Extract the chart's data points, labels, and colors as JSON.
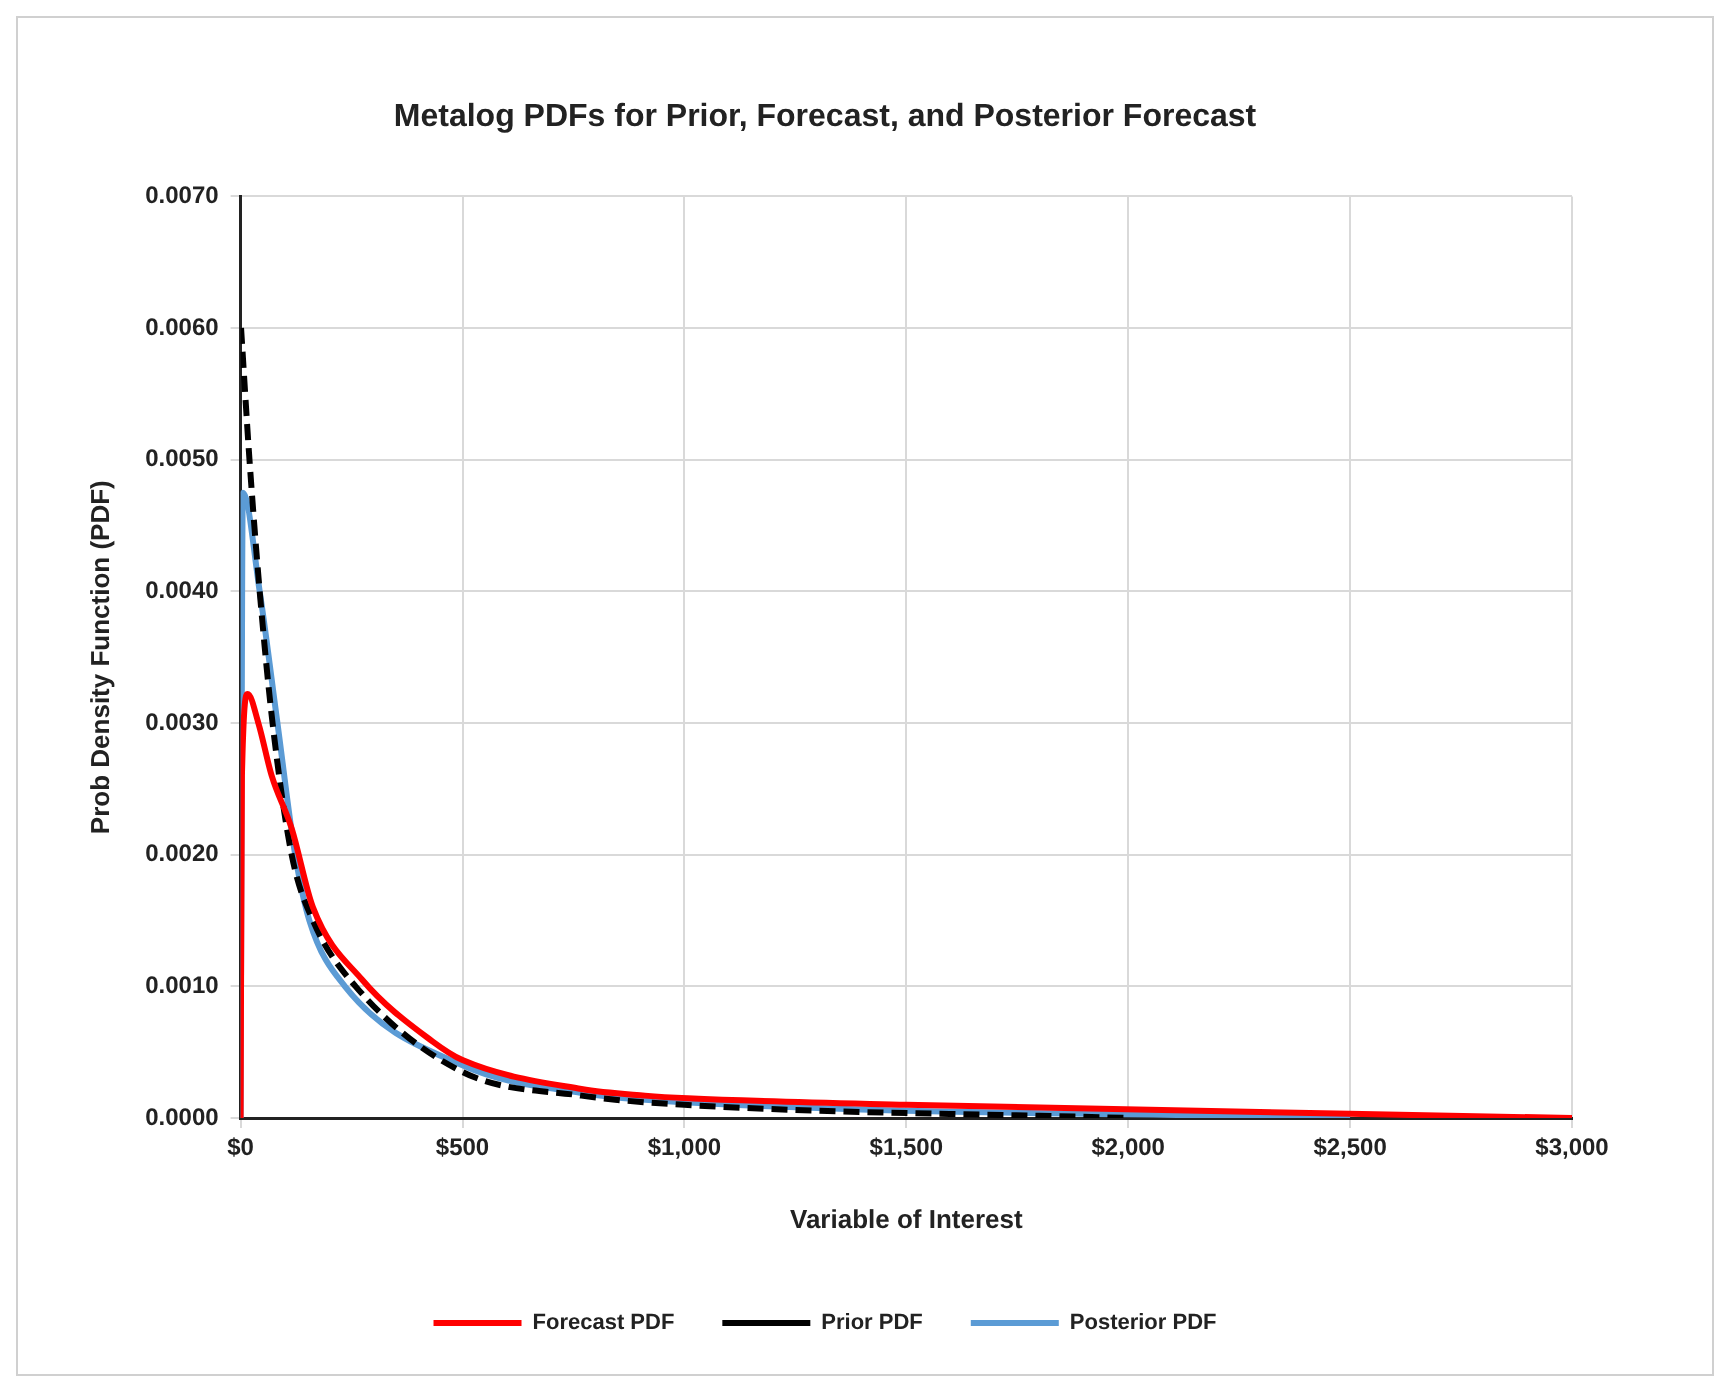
{
  "chart_data": {
    "type": "line",
    "title": "Metalog PDFs for Prior, Forecast, and Posterior Forecast",
    "xlabel": "Variable of Interest",
    "ylabel": "Prob Density Function (PDF)",
    "xlim": [
      0,
      3000
    ],
    "xticks": [
      {
        "value": 0,
        "label": "$0"
      },
      {
        "value": 500,
        "label": "$500"
      },
      {
        "value": 1000,
        "label": "$1,000"
      },
      {
        "value": 1500,
        "label": "$1,500"
      },
      {
        "value": 2000,
        "label": "$2,000"
      },
      {
        "value": 2500,
        "label": "$2,500"
      },
      {
        "value": 3000,
        "label": "$3,000"
      }
    ],
    "ylim": [
      0,
      0.007
    ],
    "yticks": [
      {
        "value": 0,
        "label": "0.0000"
      },
      {
        "value": 0.001,
        "label": "0.0010"
      },
      {
        "value": 0.002,
        "label": "0.0020"
      },
      {
        "value": 0.003,
        "label": "0.0030"
      },
      {
        "value": 0.004,
        "label": "0.0040"
      },
      {
        "value": 0.005,
        "label": "0.0050"
      },
      {
        "value": 0.006,
        "label": "0.0060"
      },
      {
        "value": 0.007,
        "label": "0.0070"
      }
    ],
    "grid": true,
    "legend": "bottom",
    "marker": "none",
    "series": [
      {
        "name": "Forecast PDF",
        "color": "#ff0000",
        "line_style": "solid",
        "x": [
          0,
          3,
          16,
          40,
          70,
          115,
          163,
          274,
          433,
          500,
          768,
          911,
          1008,
          1500,
          3000
        ],
        "values": [
          0,
          0.0026,
          0.00322,
          0.003,
          0.0026,
          0.0022,
          0.0016,
          0.00105,
          0.00058,
          0.00044,
          0.00022,
          0.00017,
          0.00015,
          0.0001,
          0
        ]
      },
      {
        "name": "Prior PDF",
        "color": "#000000",
        "line_style": "dashed",
        "x": [
          1,
          20,
          43,
          72,
          115,
          163,
          259,
          500,
          768,
          1000,
          2000
        ],
        "values": [
          0.006,
          0.005,
          0.004,
          0.003,
          0.002,
          0.0015,
          0.001,
          0.00035,
          0.00017,
          0.0001,
          0
        ]
      },
      {
        "name": "Posterior PDF",
        "color": "#5b9bd5",
        "line_style": "solid",
        "x": [
          0,
          5,
          43,
          83,
          123,
          155,
          235,
          500,
          768,
          1000,
          2500
        ],
        "values": [
          0,
          0.00475,
          0.004,
          0.003,
          0.002,
          0.0015,
          0.001,
          0.0004,
          0.00019,
          0.00012,
          0
        ]
      }
    ]
  }
}
